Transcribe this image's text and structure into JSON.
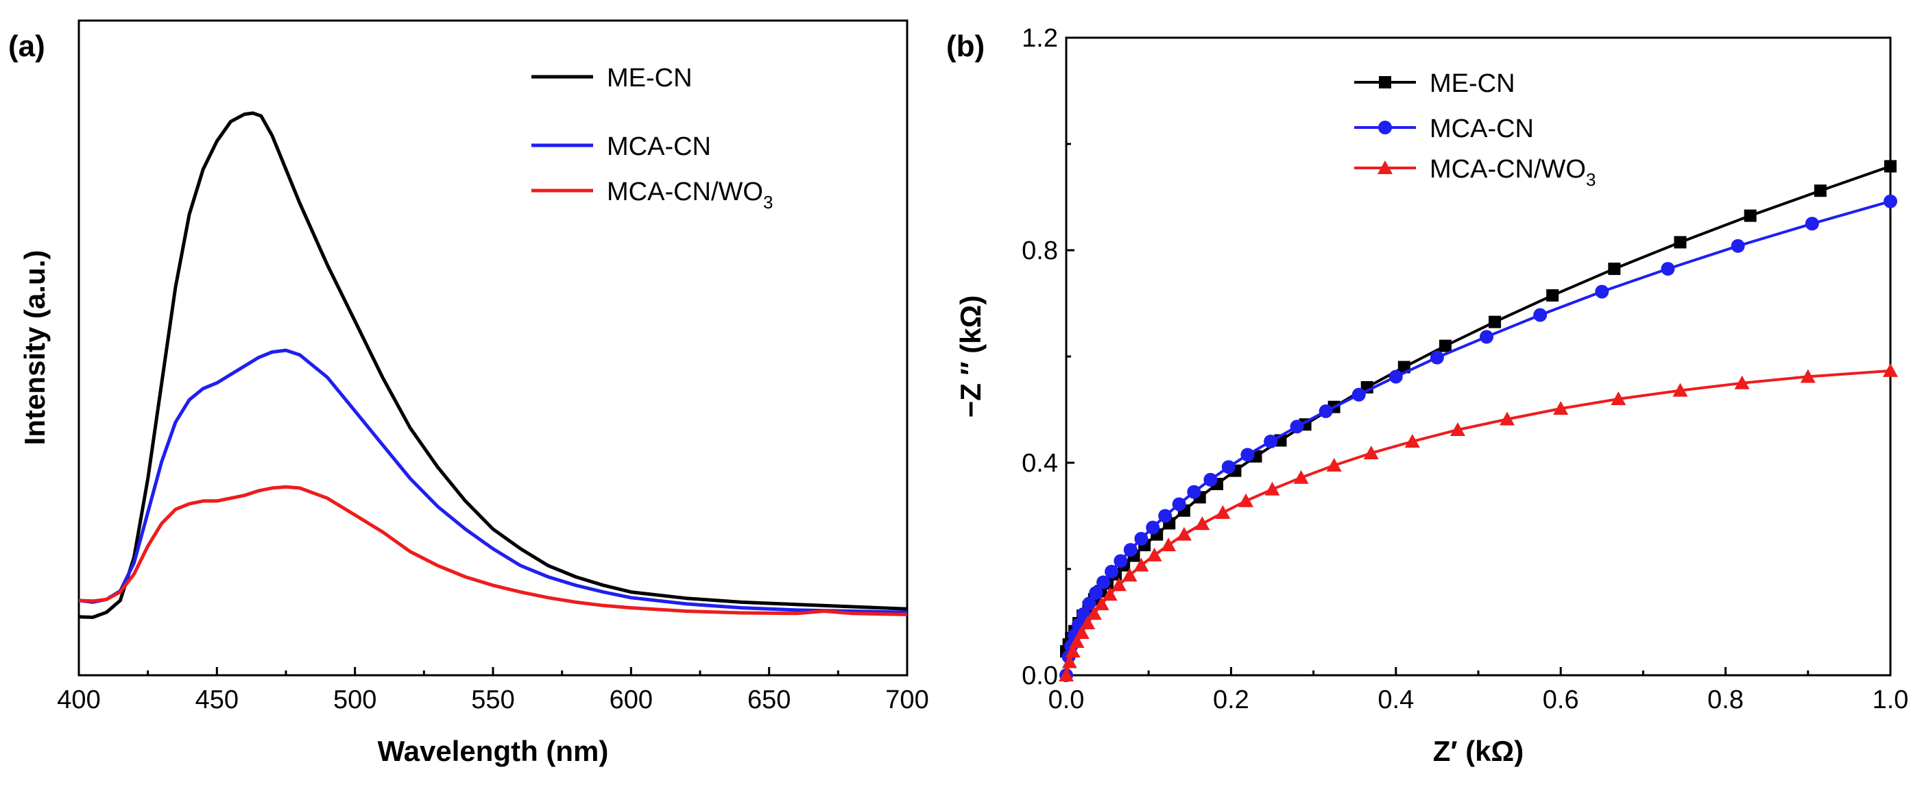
{
  "chart_data": [
    {
      "panel": "(a)",
      "type": "line",
      "xlabel": "Wavelength (nm)",
      "ylabel": "Intensity (a.u.)",
      "xlim": [
        400,
        700
      ],
      "ylim": [
        0,
        1.0
      ],
      "xticks": [
        "400",
        "450",
        "500",
        "550",
        "600",
        "650",
        "700"
      ],
      "yticks": [],
      "legend_position": "top-right",
      "series": [
        {
          "name": "ME-CN",
          "color": "#000000",
          "x": [
            400,
            405,
            410,
            415,
            420,
            425,
            430,
            435,
            440,
            445,
            450,
            455,
            460,
            463,
            466,
            470,
            475,
            480,
            490,
            500,
            510,
            520,
            530,
            540,
            550,
            560,
            570,
            580,
            590,
            600,
            620,
            640,
            660,
            680,
            700
          ],
          "y": [
            0.104,
            0.103,
            0.112,
            0.133,
            0.21,
            0.35,
            0.52,
            0.69,
            0.82,
            0.9,
            0.95,
            0.985,
            0.998,
            1.0,
            0.995,
            0.96,
            0.9,
            0.84,
            0.73,
            0.63,
            0.53,
            0.44,
            0.37,
            0.31,
            0.26,
            0.225,
            0.195,
            0.175,
            0.16,
            0.148,
            0.137,
            0.13,
            0.126,
            0.122,
            0.118
          ]
        },
        {
          "name": "MCA-CN",
          "color": "#1f1ff0",
          "x": [
            400,
            405,
            410,
            415,
            420,
            425,
            430,
            435,
            440,
            445,
            450,
            455,
            460,
            465,
            470,
            475,
            480,
            490,
            500,
            510,
            520,
            530,
            540,
            550,
            560,
            570,
            580,
            590,
            600,
            620,
            640,
            660,
            680,
            700
          ],
          "y": [
            0.133,
            0.13,
            0.135,
            0.15,
            0.2,
            0.29,
            0.38,
            0.45,
            0.49,
            0.51,
            0.52,
            0.535,
            0.55,
            0.565,
            0.575,
            0.578,
            0.57,
            0.53,
            0.47,
            0.41,
            0.35,
            0.3,
            0.26,
            0.225,
            0.195,
            0.175,
            0.16,
            0.148,
            0.138,
            0.127,
            0.12,
            0.116,
            0.114,
            0.112
          ]
        },
        {
          "name": "MCA-CN/WO3",
          "color": "#ee1c1c",
          "x": [
            400,
            405,
            410,
            415,
            420,
            425,
            430,
            435,
            440,
            445,
            450,
            455,
            460,
            465,
            470,
            475,
            480,
            490,
            500,
            510,
            520,
            530,
            540,
            550,
            560,
            570,
            580,
            590,
            600,
            620,
            640,
            660,
            670,
            680,
            700
          ],
          "y": [
            0.133,
            0.132,
            0.135,
            0.148,
            0.18,
            0.23,
            0.27,
            0.295,
            0.305,
            0.31,
            0.31,
            0.315,
            0.32,
            0.328,
            0.333,
            0.335,
            0.333,
            0.315,
            0.285,
            0.255,
            0.22,
            0.195,
            0.175,
            0.16,
            0.148,
            0.138,
            0.13,
            0.124,
            0.12,
            0.114,
            0.111,
            0.11,
            0.114,
            0.11,
            0.108
          ]
        }
      ]
    },
    {
      "panel": "(b)",
      "type": "scatter",
      "xlabel": "Z′ (kΩ)",
      "ylabel": "−Z ″ (kΩ)",
      "xlim": [
        0.0,
        1.0
      ],
      "ylim": [
        0.0,
        1.2
      ],
      "xticks": [
        "0.0",
        "0.2",
        "0.4",
        "0.6",
        "0.8",
        "1.0"
      ],
      "yticks": [
        "0.0",
        "0.4",
        "0.8",
        "1.2"
      ],
      "legend_position": "top-left",
      "series": [
        {
          "name": "ME-CN",
          "color": "#000000",
          "marker": "square",
          "x": [
            0.0,
            0.003,
            0.006,
            0.01,
            0.015,
            0.02,
            0.027,
            0.034,
            0.042,
            0.05,
            0.06,
            0.07,
            0.082,
            0.095,
            0.11,
            0.125,
            0.143,
            0.162,
            0.183,
            0.205,
            0.23,
            0.26,
            0.29,
            0.325,
            0.365,
            0.41,
            0.46,
            0.52,
            0.59,
            0.665,
            0.745,
            0.83,
            0.915,
            1.0
          ],
          "y": [
            0.045,
            0.058,
            0.07,
            0.083,
            0.098,
            0.112,
            0.128,
            0.143,
            0.158,
            0.173,
            0.19,
            0.207,
            0.225,
            0.245,
            0.265,
            0.286,
            0.31,
            0.335,
            0.36,
            0.385,
            0.412,
            0.442,
            0.472,
            0.505,
            0.542,
            0.58,
            0.62,
            0.665,
            0.715,
            0.765,
            0.815,
            0.865,
            0.912,
            0.958
          ]
        },
        {
          "name": "MCA-CN",
          "color": "#1f1ff0",
          "marker": "circle",
          "x": [
            0.0,
            0.003,
            0.006,
            0.01,
            0.015,
            0.021,
            0.028,
            0.036,
            0.045,
            0.055,
            0.066,
            0.078,
            0.091,
            0.105,
            0.12,
            0.137,
            0.155,
            0.175,
            0.197,
            0.22,
            0.248,
            0.28,
            0.315,
            0.355,
            0.4,
            0.45,
            0.51,
            0.575,
            0.65,
            0.73,
            0.815,
            0.905,
            1.0
          ],
          "y": [
            0.0,
            0.035,
            0.055,
            0.075,
            0.095,
            0.115,
            0.135,
            0.155,
            0.175,
            0.195,
            0.215,
            0.236,
            0.257,
            0.278,
            0.3,
            0.322,
            0.345,
            0.368,
            0.392,
            0.415,
            0.44,
            0.468,
            0.497,
            0.528,
            0.562,
            0.598,
            0.637,
            0.678,
            0.722,
            0.765,
            0.808,
            0.85,
            0.892
          ]
        },
        {
          "name": "MCA-CN/WO3",
          "color": "#ee1c1c",
          "marker": "triangle",
          "x": [
            0.0,
            0.004,
            0.008,
            0.013,
            0.019,
            0.026,
            0.034,
            0.043,
            0.053,
            0.064,
            0.077,
            0.091,
            0.107,
            0.124,
            0.143,
            0.165,
            0.19,
            0.218,
            0.25,
            0.285,
            0.325,
            0.37,
            0.42,
            0.475,
            0.535,
            0.6,
            0.67,
            0.745,
            0.82,
            0.9,
            1.0
          ],
          "y": [
            0.0,
            0.025,
            0.045,
            0.063,
            0.08,
            0.098,
            0.116,
            0.134,
            0.152,
            0.17,
            0.188,
            0.207,
            0.226,
            0.245,
            0.265,
            0.285,
            0.306,
            0.328,
            0.35,
            0.372,
            0.395,
            0.418,
            0.44,
            0.462,
            0.482,
            0.502,
            0.52,
            0.536,
            0.55,
            0.562,
            0.573
          ]
        }
      ]
    }
  ],
  "legend_subscript": "3"
}
